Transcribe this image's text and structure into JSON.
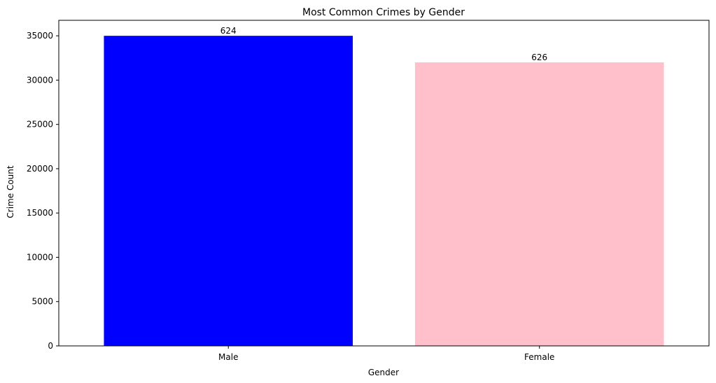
{
  "chart_data": {
    "type": "bar",
    "title": "Most Common Crimes by Gender",
    "xlabel": "Gender",
    "ylabel": "Crime Count",
    "categories": [
      "Male",
      "Female"
    ],
    "values": [
      35000,
      32000
    ],
    "data_labels": [
      "624",
      "626"
    ],
    "colors": [
      "#0000ff",
      "#ffc0cb"
    ],
    "ylim": [
      0,
      36750
    ],
    "yticks": [
      0,
      5000,
      10000,
      15000,
      20000,
      25000,
      30000,
      35000
    ],
    "grid": false,
    "legend": "none"
  }
}
